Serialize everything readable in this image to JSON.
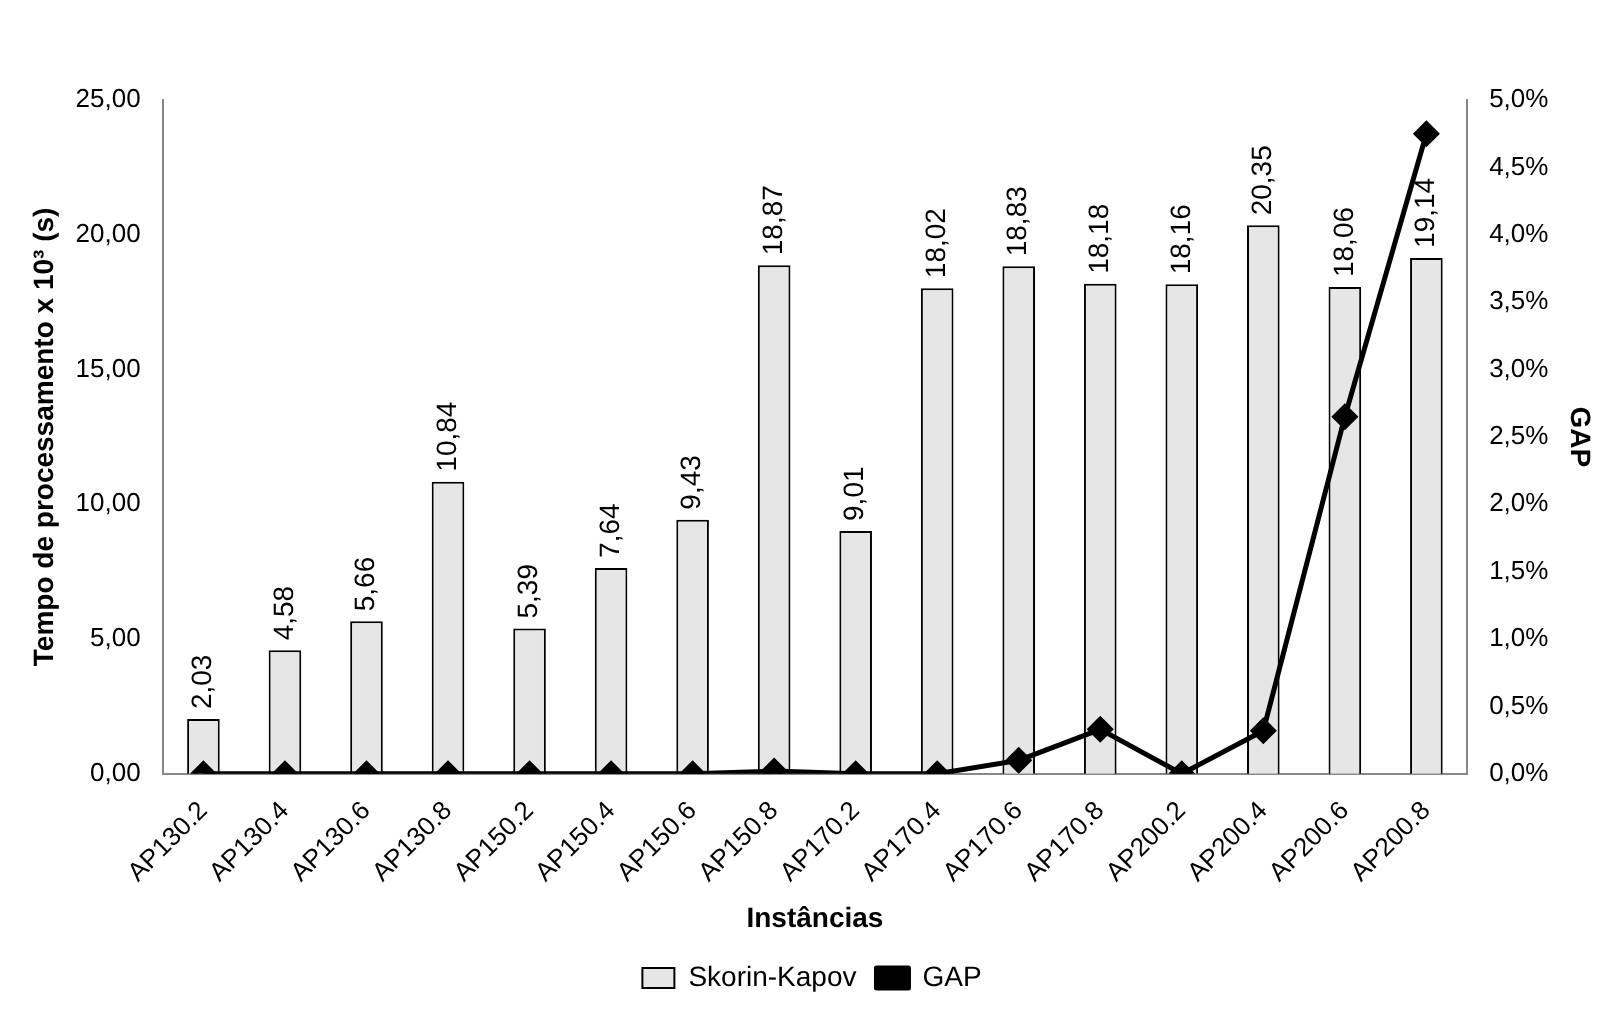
{
  "chart_data": {
    "type": "bar",
    "xlabel": "Instâncias",
    "ylabel": "Tempo de processamento x 10³ (s)",
    "y2label": "GAP",
    "categories": [
      "AP130.2",
      "AP130.4",
      "AP130.6",
      "AP130.8",
      "AP150.2",
      "AP150.4",
      "AP150.6",
      "AP150.8",
      "AP170.2",
      "AP170.4",
      "AP170.6",
      "AP170.8",
      "AP200.2",
      "AP200.4",
      "AP200.6",
      "AP200.8"
    ],
    "series": [
      {
        "name": "Skorin-Kapov",
        "color": "#e6e6e6",
        "values": [
          2.03,
          4.58,
          5.66,
          10.84,
          5.39,
          7.64,
          9.43,
          18.87,
          9.01,
          18.02,
          18.83,
          18.18,
          18.16,
          20.35,
          18.06,
          19.14
        ],
        "value_labels": [
          "2,03",
          "4,58",
          "5,66",
          "10,84",
          "5,39",
          "7,64",
          "9,43",
          "18,87",
          "9,01",
          "18,02",
          "18,83",
          "18,18",
          "18,16",
          "20,35",
          "18,06",
          "19,14"
        ]
      },
      {
        "name": "GAP",
        "type": "line",
        "axis": "y2",
        "color": "#000000",
        "marker": "diamond",
        "values": [
          0,
          0,
          0,
          0,
          0,
          0,
          0,
          0.02,
          0,
          0,
          0.1,
          0.33,
          0,
          0.32,
          2.65,
          4.75
        ]
      }
    ],
    "ylim": [
      0,
      25
    ],
    "yticks": [
      {
        "value": 0,
        "label": "0,00"
      },
      {
        "value": 5,
        "label": "5,00"
      },
      {
        "value": 10,
        "label": "10,00"
      },
      {
        "value": 15,
        "label": "15,00"
      },
      {
        "value": 20,
        "label": "20,00"
      },
      {
        "value": 25,
        "label": "25,00"
      }
    ],
    "y2lim": [
      0,
      5
    ],
    "y2ticks": [
      {
        "value": 0,
        "label": "0,0%"
      },
      {
        "value": 0.5,
        "label": "0,5%"
      },
      {
        "value": 1,
        "label": "1,0%"
      },
      {
        "value": 1.5,
        "label": "1,5%"
      },
      {
        "value": 2,
        "label": "2,0%"
      },
      {
        "value": 2.5,
        "label": "2,5%"
      },
      {
        "value": 3,
        "label": "3,0%"
      },
      {
        "value": 3.5,
        "label": "3,5%"
      },
      {
        "value": 4,
        "label": "4,0%"
      },
      {
        "value": 4.5,
        "label": "4,5%"
      },
      {
        "value": 5,
        "label": "5,0%"
      }
    ],
    "grid": false,
    "legend": "bottom"
  }
}
